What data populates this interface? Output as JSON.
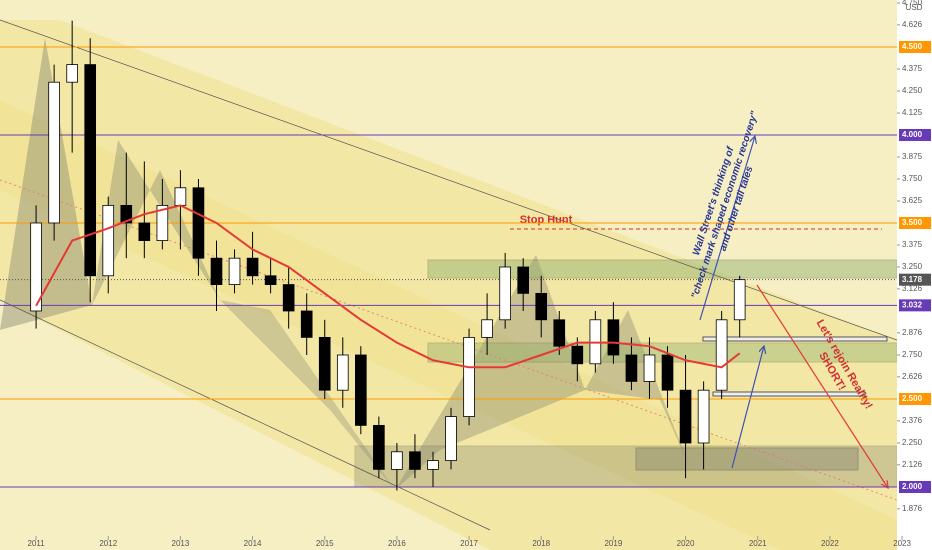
{
  "chart_data": {
    "type": "candlestick",
    "currency": "USD",
    "x": [
      2011.0,
      2011.25,
      2011.5,
      2011.75,
      2012.0,
      2012.25,
      2012.5,
      2012.75,
      2013.0,
      2013.25,
      2013.5,
      2013.75,
      2014.0,
      2014.25,
      2014.5,
      2014.75,
      2015.0,
      2015.25,
      2015.5,
      2015.75,
      2016.0,
      2016.25,
      2016.5,
      2016.75,
      2017.0,
      2017.25,
      2017.5,
      2017.75,
      2018.0,
      2018.25,
      2018.5,
      2018.75,
      2019.0,
      2019.25,
      2019.5,
      2019.75,
      2020.0,
      2020.25,
      2020.5,
      2020.75
    ],
    "open": [
      3.0,
      3.5,
      4.3,
      4.4,
      3.2,
      3.6,
      3.5,
      3.4,
      3.6,
      3.7,
      3.3,
      3.15,
      3.3,
      3.2,
      3.15,
      3.0,
      2.85,
      2.55,
      2.75,
      2.35,
      2.1,
      2.2,
      2.1,
      2.15,
      2.4,
      2.85,
      2.95,
      3.25,
      3.1,
      2.95,
      2.8,
      2.7,
      2.95,
      2.75,
      2.6,
      2.75,
      2.55,
      2.25,
      2.55,
      2.95
    ],
    "high": [
      3.6,
      4.4,
      4.65,
      4.55,
      3.65,
      3.9,
      3.85,
      3.75,
      3.8,
      3.75,
      3.4,
      3.35,
      3.45,
      3.3,
      3.25,
      3.1,
      2.95,
      2.85,
      2.8,
      2.4,
      2.25,
      2.3,
      2.2,
      2.45,
      2.9,
      3.1,
      3.33,
      3.3,
      3.2,
      3.0,
      2.85,
      3.0,
      3.05,
      2.85,
      2.85,
      2.8,
      2.75,
      2.6,
      3.0,
      3.2
    ],
    "low": [
      2.9,
      3.4,
      3.9,
      3.05,
      3.1,
      3.3,
      3.3,
      3.35,
      3.35,
      3.2,
      3.0,
      3.1,
      3.15,
      3.1,
      2.9,
      2.75,
      2.5,
      2.45,
      2.3,
      2.05,
      1.98,
      2.05,
      2.0,
      2.1,
      2.35,
      2.75,
      2.9,
      3.0,
      2.85,
      2.75,
      2.6,
      2.65,
      2.7,
      2.55,
      2.5,
      2.45,
      2.05,
      2.1,
      2.5,
      2.85
    ],
    "close": [
      3.5,
      4.3,
      4.4,
      3.2,
      3.6,
      3.5,
      3.4,
      3.6,
      3.7,
      3.3,
      3.15,
      3.3,
      3.2,
      3.15,
      3.0,
      2.85,
      2.55,
      2.75,
      2.35,
      2.1,
      2.2,
      2.1,
      2.15,
      2.4,
      2.85,
      2.95,
      3.25,
      3.1,
      2.95,
      2.8,
      2.7,
      2.95,
      2.75,
      2.6,
      2.75,
      2.55,
      2.25,
      2.55,
      2.95,
      3.178
    ],
    "up_color": "#ffffff",
    "down_color": "#000000",
    "overlay": {
      "color": "#e53935",
      "x": [
        2011.0,
        2011.5,
        2012.0,
        2012.5,
        2013.0,
        2013.5,
        2014.0,
        2014.5,
        2015.0,
        2015.5,
        2016.0,
        2016.5,
        2017.0,
        2017.5,
        2018.0,
        2018.5,
        2019.0,
        2019.5,
        2020.0,
        2020.5,
        2020.75
      ],
      "values": [
        3.03,
        3.4,
        3.47,
        3.55,
        3.6,
        3.5,
        3.35,
        3.25,
        3.1,
        2.95,
        2.82,
        2.72,
        2.68,
        2.68,
        2.75,
        2.82,
        2.82,
        2.8,
        2.72,
        2.68,
        2.76
      ]
    },
    "xlim": [
      2010.5,
      2022.93
    ],
    "xticks": [
      2011,
      2012,
      2013,
      2014,
      2015,
      2016,
      2017,
      2018,
      2019,
      2020,
      2021,
      2022,
      2023
    ],
    "ylim": [
      1.642,
      4.767
    ],
    "yticks": [
      {
        "value": 4.75,
        "label": "4.750"
      },
      {
        "value": 4.626,
        "label": "4.626"
      },
      {
        "value": 4.375,
        "label": "4.375"
      },
      {
        "value": 4.25,
        "label": "4.250"
      },
      {
        "value": 4.125,
        "label": "4.125"
      },
      {
        "value": 3.875,
        "label": "3.875"
      },
      {
        "value": 3.75,
        "label": "3.750"
      },
      {
        "value": 3.625,
        "label": "3.625"
      },
      {
        "value": 3.375,
        "label": "3.375"
      },
      {
        "value": 3.25,
        "label": "3.250"
      },
      {
        "value": 3.126,
        "label": "3.126"
      },
      {
        "value": 2.876,
        "label": "2.876"
      },
      {
        "value": 2.75,
        "label": "2.750"
      },
      {
        "value": 2.626,
        "label": "2.626"
      },
      {
        "value": 2.376,
        "label": "2.376"
      },
      {
        "value": 2.25,
        "label": "2.250"
      },
      {
        "value": 2.126,
        "label": "2.126"
      },
      {
        "value": 1.876,
        "label": "1.876"
      }
    ],
    "levels": [
      {
        "value": 4.5,
        "label": "4.500",
        "color": "#ff9800"
      },
      {
        "value": 4.0,
        "label": "4.000",
        "color": "#673ab7"
      },
      {
        "value": 3.5,
        "label": "3.500",
        "color": "#ff9800"
      },
      {
        "value": 3.178,
        "label": "3.178",
        "color": "#555555"
      },
      {
        "value": 3.032,
        "label": "3.032",
        "color": "#673ab7"
      },
      {
        "value": 2.5,
        "label": "2.500",
        "color": "#ff9800"
      },
      {
        "value": 2.0,
        "label": "2.000",
        "color": "#673ab7"
      }
    ],
    "annotations": {
      "stop_hunt": "Stop Hunt",
      "wall_street": [
        "Wall Street's thinking of",
        "\"check mark shaped economic recovery\"",
        "and other tall tales"
      ],
      "reality": [
        "Let's rejoin Reality!",
        "SHORT!"
      ]
    }
  }
}
